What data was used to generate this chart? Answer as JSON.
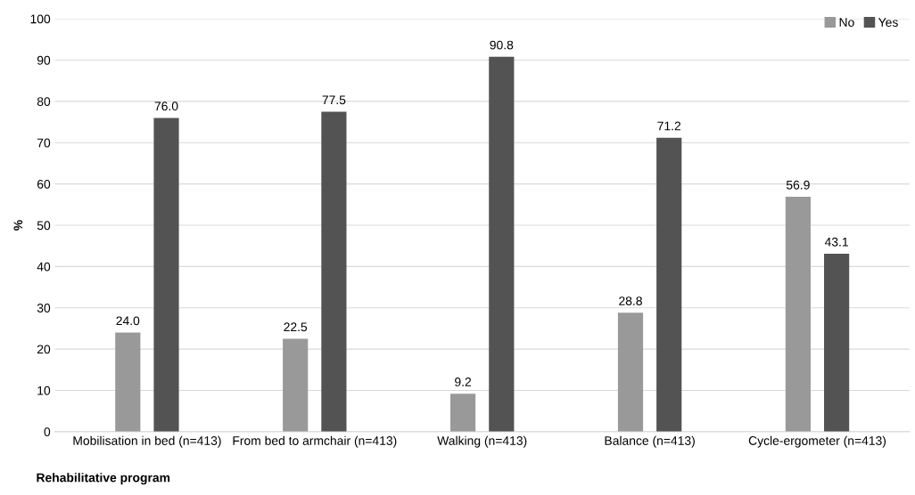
{
  "chart_data": {
    "type": "bar",
    "xlabel": "Rehabilitative program",
    "ylabel": "%",
    "categories": [
      "Mobilisation in bed (n=413)",
      "From bed to armchair (n=413)",
      "Walking (n=413)",
      "Balance (n=413)",
      "Cycle-ergometer (n=413)"
    ],
    "series": [
      {
        "name": "No",
        "color": "#999999",
        "values": [
          24.0,
          22.5,
          9.2,
          28.8,
          56.9
        ],
        "value_labels": [
          "24.0",
          "22.5",
          "9.2",
          "28.8",
          "56.9"
        ]
      },
      {
        "name": "Yes",
        "color": "#535353",
        "values": [
          76.0,
          77.5,
          90.8,
          71.2,
          43.1
        ],
        "value_labels": [
          "76.0",
          "77.5",
          "90.8",
          "71.2",
          "43.1"
        ]
      }
    ],
    "ylim": [
      0,
      100
    ],
    "yticks": [
      0,
      10,
      20,
      30,
      40,
      50,
      60,
      70,
      80,
      90,
      100
    ],
    "grid": "y",
    "legend": "top right"
  }
}
